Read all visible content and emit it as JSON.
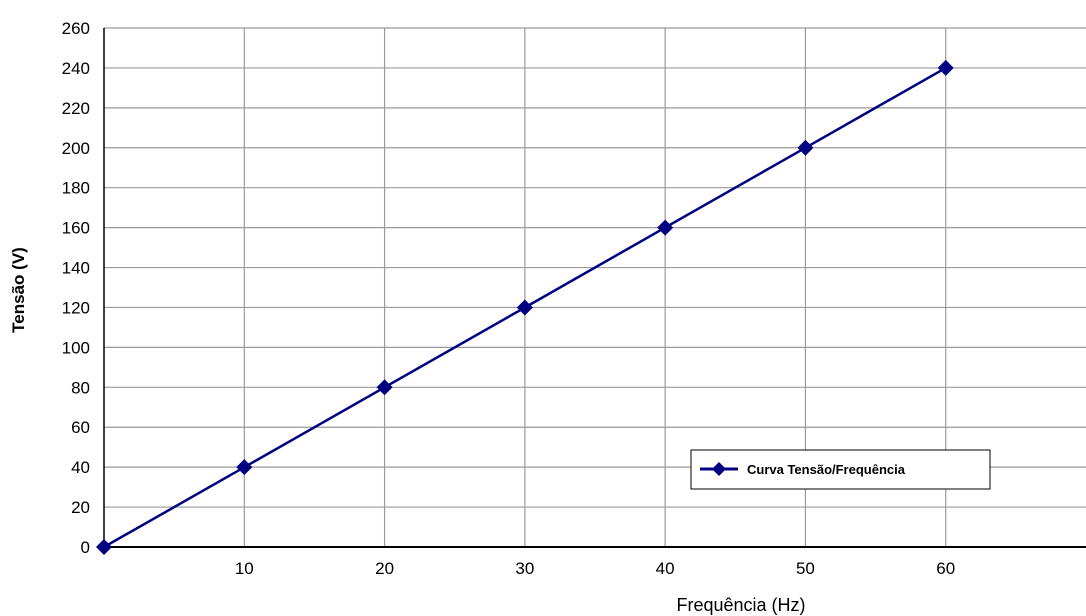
{
  "chart_data": {
    "type": "line",
    "title": "",
    "xlabel": "Frequência (Hz)",
    "ylabel": "Tensão (V)",
    "xlim": [
      0,
      70
    ],
    "ylim": [
      0,
      260
    ],
    "x_ticks": [
      10,
      20,
      30,
      40,
      50,
      60
    ],
    "y_ticks": [
      0,
      20,
      40,
      60,
      80,
      100,
      120,
      140,
      160,
      180,
      200,
      220,
      240,
      260
    ],
    "grid": true,
    "legend_position": "bottom-right",
    "series": [
      {
        "name": "Curva Tensão/Frequência",
        "color": "#000080",
        "marker": "diamond",
        "x": [
          0,
          10,
          20,
          30,
          40,
          50,
          60
        ],
        "y": [
          0,
          40,
          80,
          120,
          160,
          200,
          240
        ]
      }
    ]
  }
}
